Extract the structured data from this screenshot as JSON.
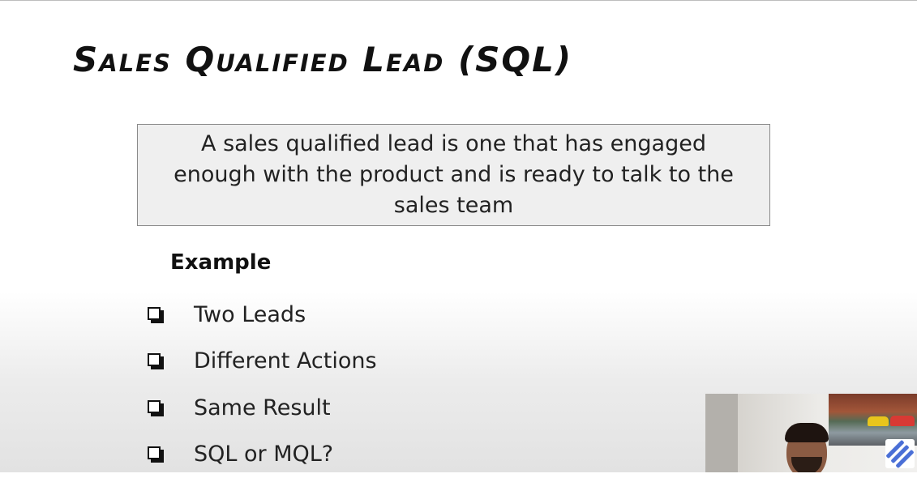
{
  "slide": {
    "title": "Sales Qualified Lead (SQL)",
    "definition": "A sales qualified lead is one that has engaged enough with the product and is ready to talk to the sales team",
    "example_heading": "Example",
    "bullets": [
      "Two Leads",
      "Different Actions",
      "Same Result",
      "SQL or MQL?"
    ]
  },
  "icons": {
    "bullet": "checkbox-outline-icon",
    "logo": "presenter-logo-icon"
  },
  "colors": {
    "text": "#111111",
    "box_background": "#efefef",
    "box_border": "#8a8a8a",
    "logo_accent": "#4a6fd6"
  }
}
